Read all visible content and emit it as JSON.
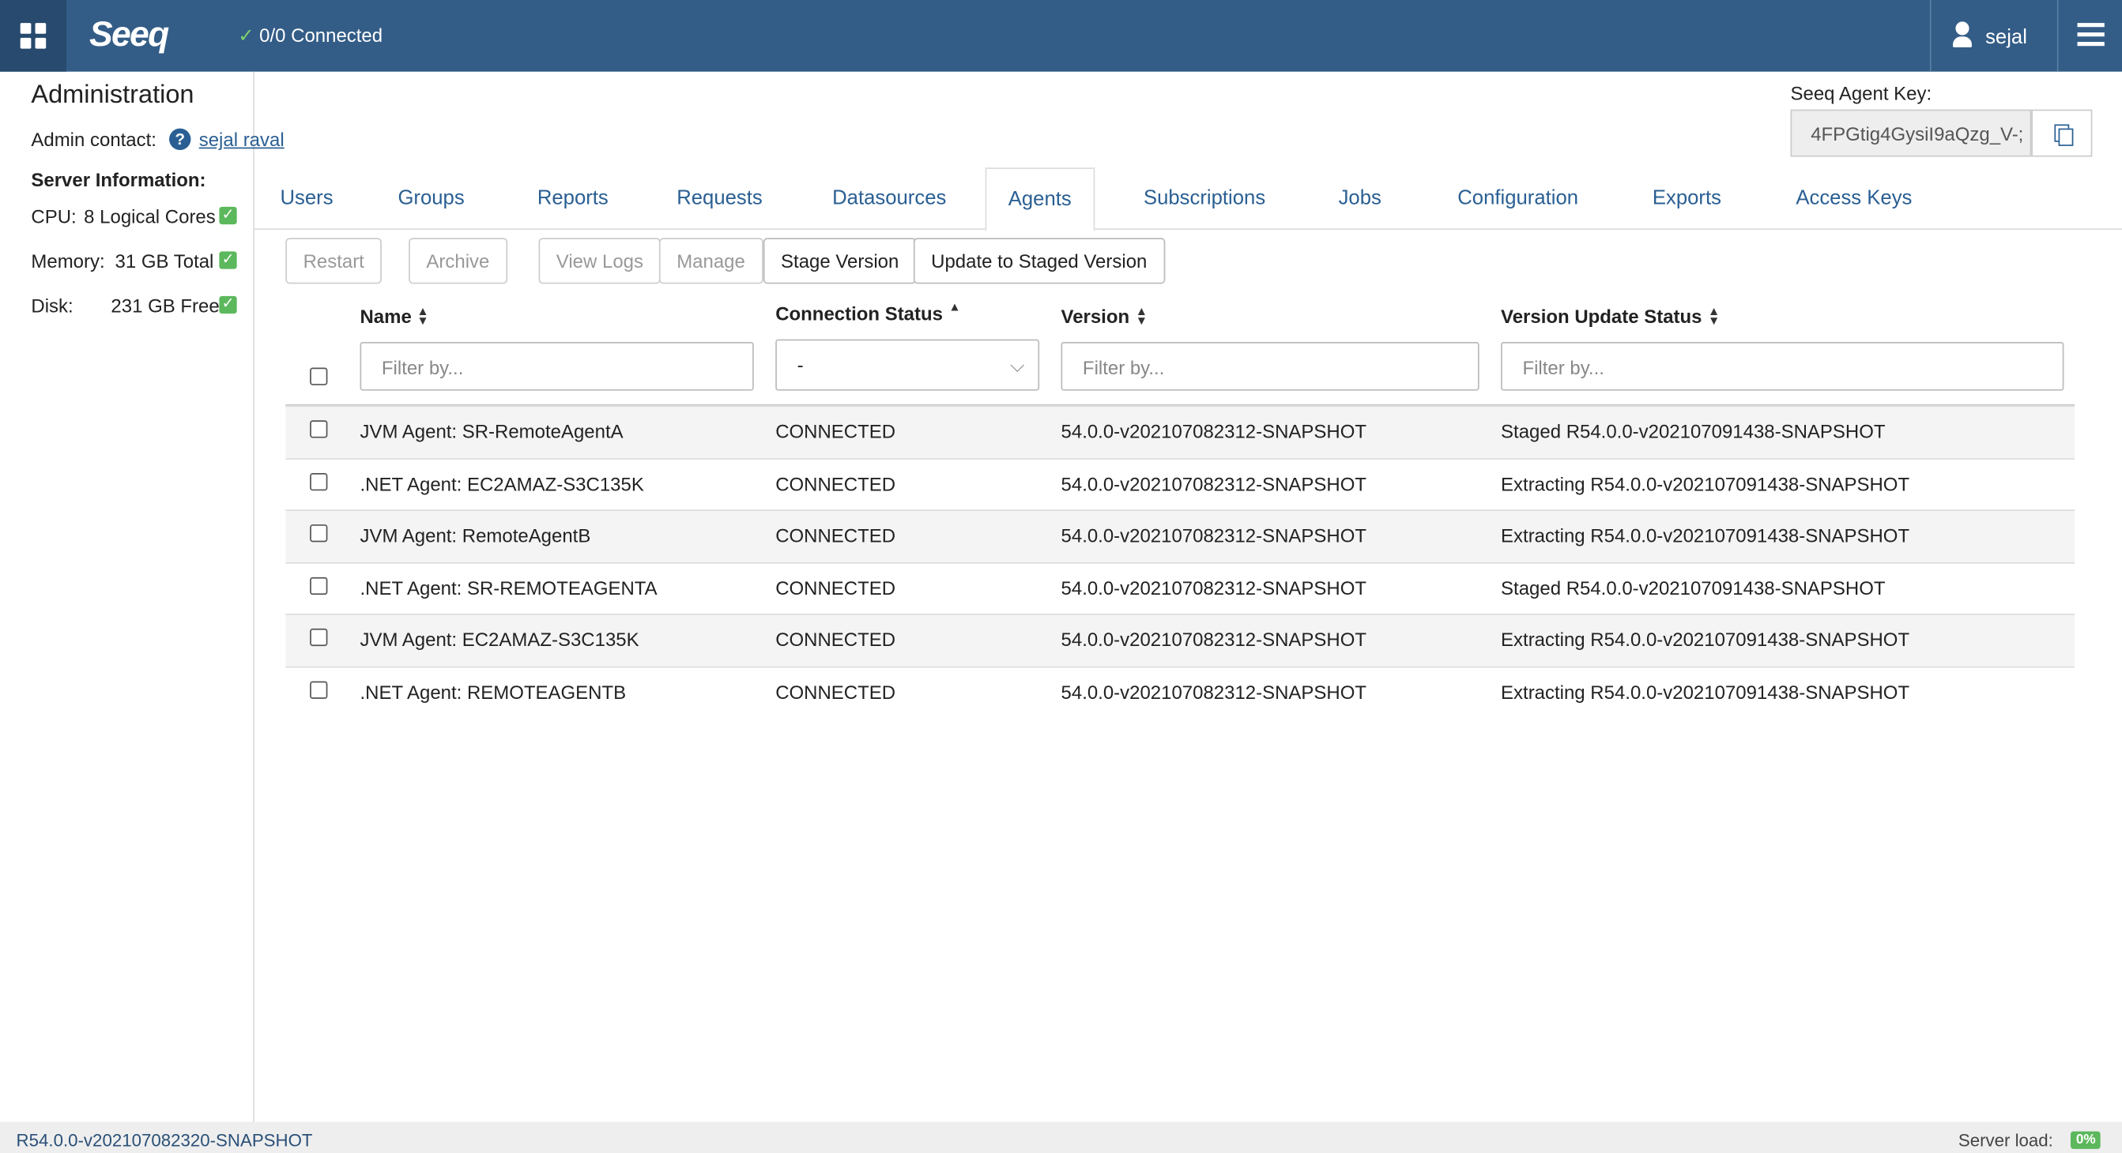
{
  "header": {
    "logo": "Seeq",
    "connection": "0/0 Connected",
    "user": "sejal"
  },
  "admin": {
    "title": "Administration",
    "contact_label": "Admin contact:",
    "contact_name": "sejal raval",
    "agent_key_label": "Seeq Agent Key:",
    "agent_key": "4FPGtig4GysiI9aQzg_V-;"
  },
  "server": {
    "title": "Server Information:",
    "items": [
      {
        "label": "CPU:",
        "value": "8 Logical Cores"
      },
      {
        "label": "Memory:",
        "value": "31 GB Total"
      },
      {
        "label": "Disk:",
        "value": "231 GB Free"
      }
    ]
  },
  "tabs": {
    "items": [
      "Users",
      "Groups",
      "Reports",
      "Requests",
      "Datasources",
      "Agents",
      "Subscriptions",
      "Jobs",
      "Configuration",
      "Exports",
      "Access Keys"
    ],
    "active": 5
  },
  "toolbar": [
    {
      "label": "Restart",
      "enabled": false
    },
    {
      "label": "Archive",
      "enabled": false
    },
    {
      "label": "View Logs",
      "enabled": false
    },
    {
      "label": "Manage",
      "enabled": false
    },
    {
      "label": "Stage Version",
      "enabled": true
    },
    {
      "label": "Update to Staged Version",
      "enabled": true
    }
  ],
  "table": {
    "columns": [
      "Name",
      "Connection Status",
      "Version",
      "Version Update Status"
    ],
    "filter_placeholder": "Filter by...",
    "status_filter": "-",
    "rows": [
      [
        "JVM Agent: SR-RemoteAgentA",
        "CONNECTED",
        "54.0.0-v202107082312-SNAPSHOT",
        "Staged R54.0.0-v202107091438-SNAPSHOT"
      ],
      [
        ".NET Agent: EC2AMAZ-S3C135K",
        "CONNECTED",
        "54.0.0-v202107082312-SNAPSHOT",
        "Extracting R54.0.0-v202107091438-SNAPSHOT"
      ],
      [
        "JVM Agent: RemoteAgentB",
        "CONNECTED",
        "54.0.0-v202107082312-SNAPSHOT",
        "Extracting R54.0.0-v202107091438-SNAPSHOT"
      ],
      [
        ".NET Agent: SR-REMOTEAGENTA",
        "CONNECTED",
        "54.0.0-v202107082312-SNAPSHOT",
        "Staged R54.0.0-v202107091438-SNAPSHOT"
      ],
      [
        "JVM Agent: EC2AMAZ-S3C135K",
        "CONNECTED",
        "54.0.0-v202107082312-SNAPSHOT",
        "Extracting R54.0.0-v202107091438-SNAPSHOT"
      ],
      [
        ".NET Agent: REMOTEAGENTB",
        "CONNECTED",
        "54.0.0-v202107082312-SNAPSHOT",
        "Extracting R54.0.0-v202107091438-SNAPSHOT"
      ]
    ]
  },
  "footer": {
    "version": "R54.0.0-v202107082320-SNAPSHOT",
    "load_label": "Server load:",
    "load": "0%"
  }
}
